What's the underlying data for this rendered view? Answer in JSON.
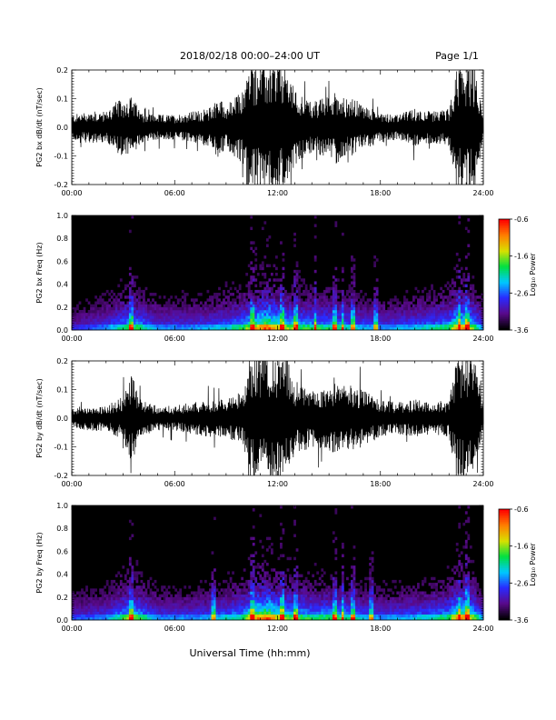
{
  "header": {
    "title": "2018/02/18  00:00–24:00 UT",
    "page": "Page 1/1"
  },
  "footer": {
    "xlabel": "Universal Time (hh:mm)"
  },
  "colors": {
    "background": "#ffffff",
    "trace": "#000000",
    "spectrogram_bg": "#000000",
    "colormap": [
      "#000000",
      "#5a0a8c",
      "#2a2aff",
      "#00c8ff",
      "#00e040",
      "#d8e000",
      "#ff8000",
      "#ff0000"
    ]
  },
  "chart_data": [
    {
      "type": "line",
      "name": "bx-waveform",
      "ylabel": "PG2 bx dB/dt (nT/sec)",
      "xlabel": "",
      "xlim": [
        0,
        24
      ],
      "ylim": [
        -0.2,
        0.2
      ],
      "x_tick_labels": [
        "00:00",
        "06:00",
        "12:00",
        "18:00",
        "24:00"
      ],
      "y_ticks": [
        -0.2,
        -0.1,
        0.0,
        0.1,
        0.2
      ],
      "y_tick_labels": [
        "-0.2",
        "-0.1",
        "0.0",
        "0.1",
        "0.2"
      ],
      "amplitude_envelope": {
        "hour": [
          0,
          1,
          2,
          2.5,
          3,
          3.5,
          4,
          5,
          6,
          7,
          8,
          8.5,
          9,
          10,
          10.3,
          10.6,
          11,
          11.5,
          12,
          12.5,
          13,
          14,
          15,
          15.5,
          16,
          16.5,
          17,
          18,
          19,
          20,
          21,
          22,
          22.5,
          23,
          23.5,
          24
        ],
        "amplitude": [
          0.04,
          0.05,
          0.05,
          0.08,
          0.09,
          0.1,
          0.05,
          0.04,
          0.04,
          0.05,
          0.06,
          0.1,
          0.07,
          0.12,
          0.2,
          0.2,
          0.2,
          0.2,
          0.2,
          0.2,
          0.12,
          0.08,
          0.1,
          0.12,
          0.09,
          0.09,
          0.07,
          0.05,
          0.04,
          0.06,
          0.05,
          0.06,
          0.2,
          0.2,
          0.2,
          0.03
        ]
      }
    },
    {
      "type": "heatmap",
      "name": "bx-spectrogram",
      "ylabel": "PG2 bx Freq (Hz)",
      "xlabel": "",
      "xlim": [
        0,
        24
      ],
      "ylim": [
        0.0,
        1.0
      ],
      "x_tick_labels": [
        "00:00",
        "06:00",
        "12:00",
        "18:00",
        "24:00"
      ],
      "y_ticks": [
        0.0,
        0.2,
        0.4,
        0.6,
        0.8,
        1.0
      ],
      "y_tick_labels": [
        "0.0",
        "0.2",
        "0.4",
        "0.6",
        "0.8",
        "1.0"
      ],
      "colorbar": {
        "label": "Log₁₀ Power",
        "range": [
          -3.6,
          -0.6
        ],
        "tick_labels": [
          "-0.6",
          "-1.6",
          "-2.6",
          "-3.6"
        ]
      },
      "activity_profile": {
        "hour": [
          0,
          2,
          3.5,
          5,
          7,
          8.5,
          10,
          10.5,
          11.5,
          12,
          13,
          14,
          15,
          16,
          17,
          18,
          20,
          22,
          22.5,
          23,
          24
        ],
        "intensity": [
          0.2,
          0.3,
          0.5,
          0.3,
          0.3,
          0.35,
          0.45,
          0.6,
          0.75,
          0.6,
          0.5,
          0.45,
          0.45,
          0.4,
          0.35,
          0.3,
          0.35,
          0.45,
          0.7,
          0.65,
          0.3
        ]
      },
      "vertical_bands_hour": [
        3.5,
        10.5,
        12.3,
        13.1,
        14.2,
        15.3,
        15.8,
        16.4,
        17.7,
        22.6,
        23.1
      ]
    },
    {
      "type": "line",
      "name": "by-waveform",
      "ylabel": "PG2 by dB/dt (nT/sec)",
      "xlabel": "",
      "xlim": [
        0,
        24
      ],
      "ylim": [
        -0.2,
        0.2
      ],
      "x_tick_labels": [
        "00:00",
        "06:00",
        "12:00",
        "18:00",
        "24:00"
      ],
      "y_ticks": [
        -0.2,
        -0.1,
        0.0,
        0.1,
        0.2
      ],
      "y_tick_labels": [
        "-0.2",
        "-0.1",
        "0.0",
        "0.1",
        "0.2"
      ],
      "amplitude_envelope": {
        "hour": [
          0,
          1,
          2,
          3,
          3.5,
          4,
          5,
          6,
          7,
          8,
          9,
          10,
          10.3,
          10.6,
          11,
          11.5,
          12,
          12.5,
          13,
          14,
          15,
          16,
          16.5,
          17,
          18,
          19,
          20,
          21,
          22,
          22.5,
          23,
          23.5,
          24
        ],
        "amplitude": [
          0.03,
          0.04,
          0.04,
          0.07,
          0.14,
          0.06,
          0.04,
          0.04,
          0.05,
          0.06,
          0.06,
          0.09,
          0.2,
          0.2,
          0.2,
          0.2,
          0.2,
          0.2,
          0.12,
          0.09,
          0.11,
          0.11,
          0.1,
          0.09,
          0.06,
          0.05,
          0.06,
          0.05,
          0.06,
          0.2,
          0.2,
          0.2,
          0.03
        ]
      }
    },
    {
      "type": "heatmap",
      "name": "by-spectrogram",
      "ylabel": "PG2 by Freq (Hz)",
      "xlabel": "",
      "xlim": [
        0,
        24
      ],
      "ylim": [
        0.0,
        1.0
      ],
      "x_tick_labels": [
        "00:00",
        "06:00",
        "12:00",
        "18:00",
        "24:00"
      ],
      "y_ticks": [
        0.0,
        0.2,
        0.4,
        0.6,
        0.8,
        1.0
      ],
      "y_tick_labels": [
        "0.0",
        "0.2",
        "0.4",
        "0.6",
        "0.8",
        "1.0"
      ],
      "colorbar": {
        "label": "Log₁₀ Power",
        "range": [
          -3.6,
          -0.6
        ],
        "tick_labels": [
          "-0.6",
          "-1.6",
          "-2.6",
          "-3.6"
        ]
      },
      "activity_profile": {
        "hour": [
          0,
          2,
          3.5,
          5,
          7,
          8.5,
          10,
          10.5,
          11.5,
          12,
          13,
          14,
          15,
          16,
          17,
          18,
          20,
          22,
          22.5,
          23,
          24
        ],
        "intensity": [
          0.25,
          0.3,
          0.55,
          0.3,
          0.3,
          0.35,
          0.45,
          0.65,
          0.75,
          0.6,
          0.5,
          0.45,
          0.45,
          0.45,
          0.35,
          0.3,
          0.35,
          0.45,
          0.7,
          0.7,
          0.3
        ]
      },
      "vertical_bands_hour": [
        3.5,
        8.3,
        10.5,
        12.3,
        13.1,
        15.3,
        15.8,
        16.4,
        17.5,
        22.6,
        23.1
      ]
    }
  ]
}
